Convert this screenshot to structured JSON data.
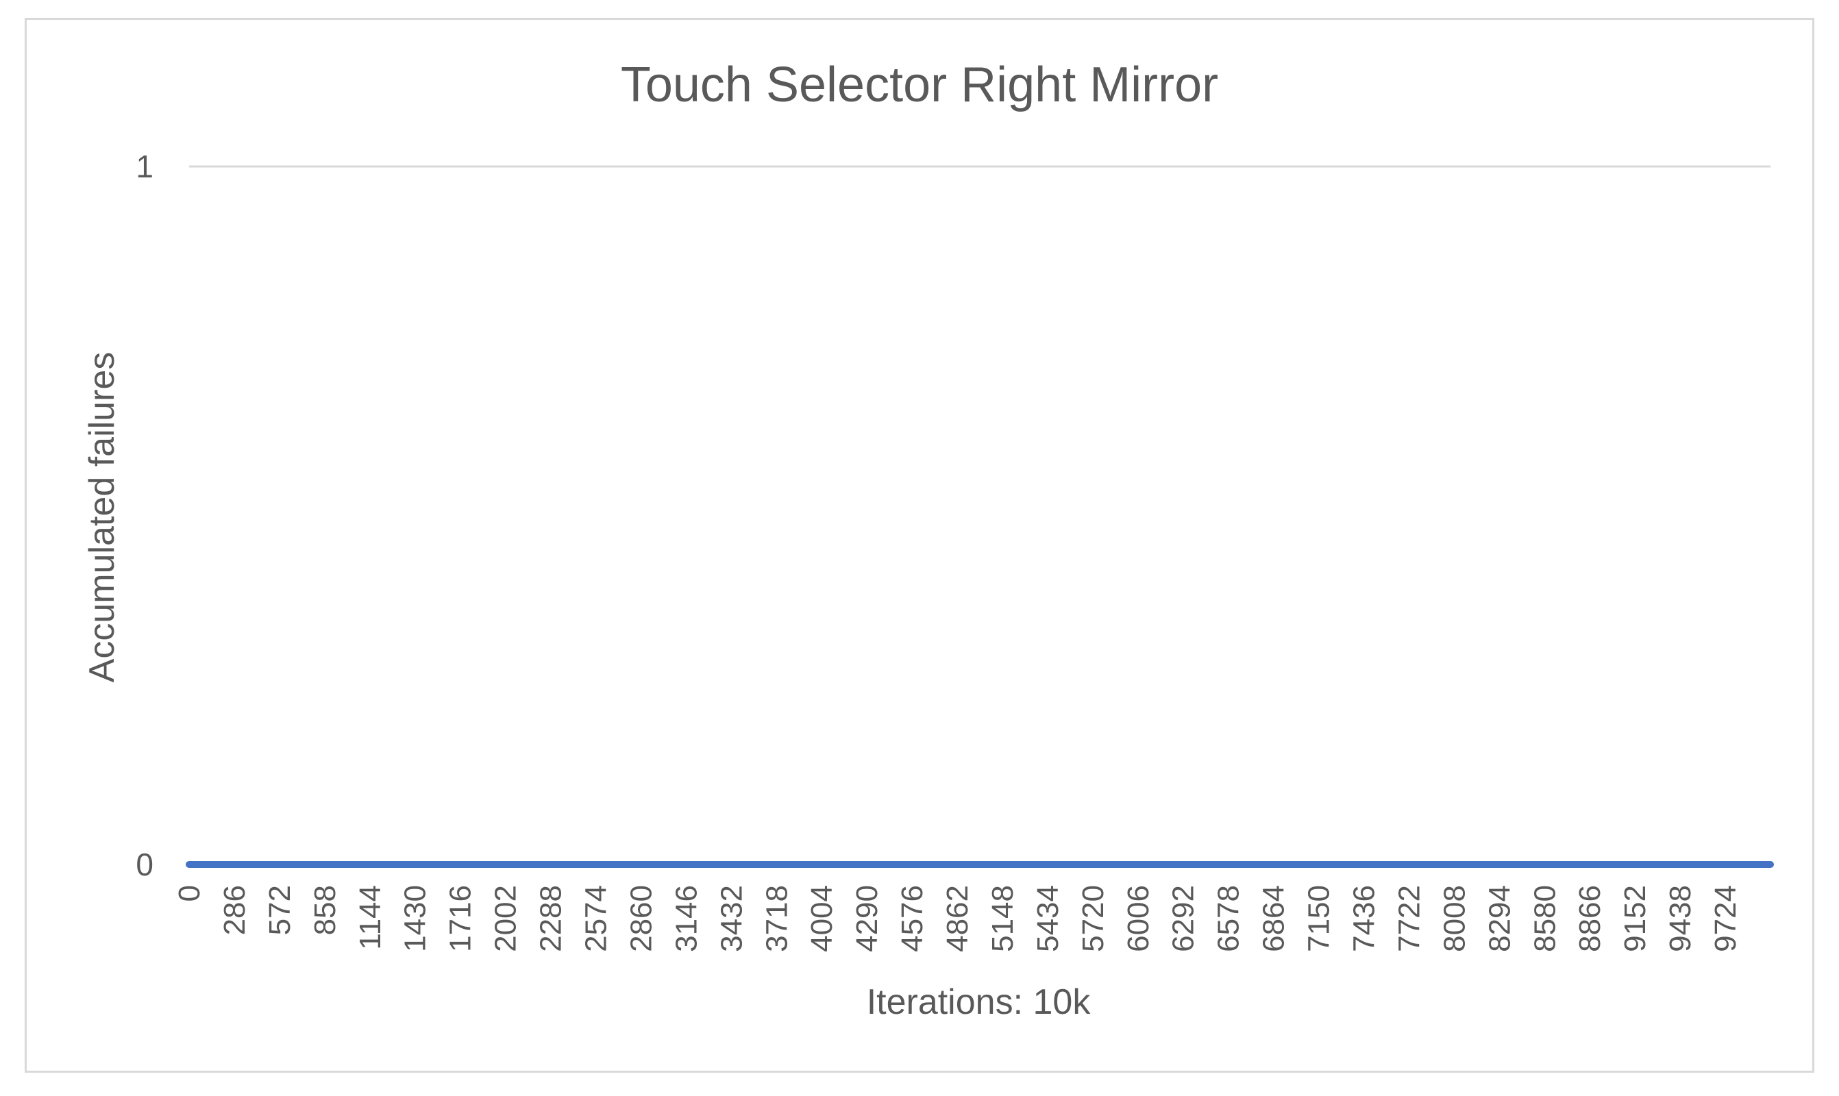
{
  "chart_data": {
    "type": "line",
    "title": "Touch Selector Right Mirror",
    "xlabel": "Iterations: 10k",
    "ylabel": "Accumulated failures",
    "x_tick_labels": [
      "0",
      "286",
      "572",
      "858",
      "1144",
      "1430",
      "1716",
      "2002",
      "2288",
      "2574",
      "2860",
      "3146",
      "3432",
      "3718",
      "4004",
      "4290",
      "4576",
      "4862",
      "5148",
      "5434",
      "5720",
      "6006",
      "6292",
      "6578",
      "6864",
      "7150",
      "7436",
      "7722",
      "8008",
      "8294",
      "8580",
      "8866",
      "9152",
      "9438",
      "9724"
    ],
    "x_tick_step": 286,
    "xlim": [
      0,
      10010
    ],
    "ylim": [
      0,
      1
    ],
    "y_ticks": [
      0,
      1
    ],
    "grid": true,
    "legend": "none",
    "series": [
      {
        "x": [
          0,
          10010
        ],
        "y": [
          0,
          0
        ],
        "color": "#4472c4"
      }
    ]
  }
}
